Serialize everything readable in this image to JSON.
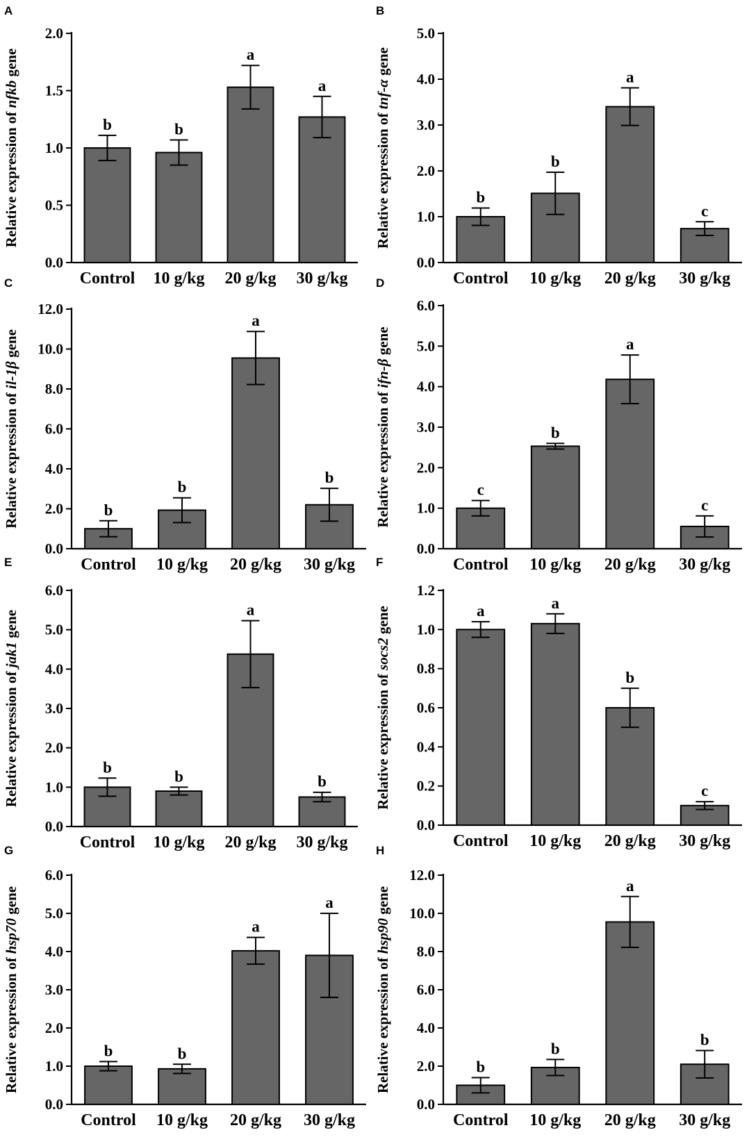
{
  "chart_data": [
    {
      "panel": "A",
      "type": "bar",
      "ylabel_prefix": "Relative expression of ",
      "gene": "nfkb",
      "ylabel_suffix": " gene",
      "categories": [
        "Control",
        "10 g/kg",
        "20 g/kg",
        "30 g/kg"
      ],
      "values": [
        1.0,
        0.96,
        1.53,
        1.27
      ],
      "errors": [
        0.11,
        0.11,
        0.19,
        0.18
      ],
      "letters": [
        "b",
        "b",
        "a",
        "a"
      ],
      "ylim": [
        0,
        2.0
      ],
      "yticks": [
        "0.0",
        "0.5",
        "1.0",
        "1.5",
        "2.0"
      ]
    },
    {
      "panel": "B",
      "type": "bar",
      "ylabel_prefix": "Relative expression of ",
      "gene": "tnf-α",
      "ylabel_suffix": " gene",
      "categories": [
        "Control",
        "10 g/kg",
        "20 g/kg",
        "30 g/kg"
      ],
      "values": [
        1.0,
        1.51,
        3.4,
        0.74
      ],
      "errors": [
        0.19,
        0.46,
        0.41,
        0.15
      ],
      "letters": [
        "b",
        "b",
        "a",
        "c"
      ],
      "ylim": [
        0,
        5.0
      ],
      "yticks": [
        "0.0",
        "1.0",
        "2.0",
        "3.0",
        "4.0",
        "5.0"
      ]
    },
    {
      "panel": "C",
      "type": "bar",
      "ylabel_prefix": "Relative expression of ",
      "gene": "il-1β",
      "ylabel_suffix": " gene",
      "categories": [
        "Control",
        "10 g/kg",
        "20 g/kg",
        "30 g/kg"
      ],
      "values": [
        1.0,
        1.93,
        9.55,
        2.2
      ],
      "errors": [
        0.4,
        0.62,
        1.33,
        0.82
      ],
      "letters": [
        "b",
        "b",
        "a",
        "b"
      ],
      "ylim": [
        0,
        12.0
      ],
      "yticks": [
        "0.0",
        "2.0",
        "4.0",
        "6.0",
        "8.0",
        "10.0",
        "12.0"
      ]
    },
    {
      "panel": "D",
      "type": "bar",
      "ylabel_prefix": "Relative expression of ",
      "gene": "ifn-β",
      "ylabel_suffix": " gene",
      "categories": [
        "Control",
        "10 g/kg",
        "20 g/kg",
        "30 g/kg"
      ],
      "values": [
        1.0,
        2.53,
        4.18,
        0.55
      ],
      "errors": [
        0.19,
        0.07,
        0.6,
        0.26
      ],
      "letters": [
        "c",
        "b",
        "a",
        "c"
      ],
      "ylim": [
        0,
        6.0
      ],
      "yticks": [
        "0.0",
        "1.0",
        "2.0",
        "3.0",
        "4.0",
        "5.0",
        "6.0"
      ]
    },
    {
      "panel": "E",
      "type": "bar",
      "ylabel_prefix": "Relative expression of ",
      "gene": "jak1",
      "ylabel_suffix": " gene",
      "categories": [
        "Control",
        "10 g/kg",
        "20 g/kg",
        "30 g/kg"
      ],
      "values": [
        1.0,
        0.9,
        4.38,
        0.75
      ],
      "errors": [
        0.23,
        0.1,
        0.85,
        0.12
      ],
      "letters": [
        "b",
        "b",
        "a",
        "b"
      ],
      "ylim": [
        0,
        6.0
      ],
      "yticks": [
        "0.0",
        "1.0",
        "2.0",
        "3.0",
        "4.0",
        "5.0",
        "6.0"
      ]
    },
    {
      "panel": "F",
      "type": "bar",
      "ylabel_prefix": "Relative expression of ",
      "gene": "socs2",
      "ylabel_suffix": " gene",
      "categories": [
        "Control",
        "10 g/kg",
        "20 g/kg",
        "30 g/kg"
      ],
      "values": [
        1.0,
        1.03,
        0.6,
        0.1
      ],
      "errors": [
        0.04,
        0.05,
        0.1,
        0.02
      ],
      "letters": [
        "a",
        "a",
        "b",
        "c"
      ],
      "ylim": [
        0,
        1.2
      ],
      "yticks": [
        "0.0",
        "0.2",
        "0.4",
        "0.6",
        "0.8",
        "1.0",
        "1.2"
      ]
    },
    {
      "panel": "G",
      "type": "bar",
      "ylabel_prefix": "Relative expression of ",
      "gene": "hsp70",
      "ylabel_suffix": " gene",
      "categories": [
        "Control",
        "10 g/kg",
        "20 g/kg",
        "30 g/kg"
      ],
      "values": [
        1.0,
        0.93,
        4.02,
        3.9
      ],
      "errors": [
        0.12,
        0.12,
        0.35,
        1.1
      ],
      "letters": [
        "b",
        "b",
        "a",
        "a"
      ],
      "ylim": [
        0,
        6.0
      ],
      "yticks": [
        "0.0",
        "1.0",
        "2.0",
        "3.0",
        "4.0",
        "5.0",
        "6.0"
      ]
    },
    {
      "panel": "H",
      "type": "bar",
      "ylabel_prefix": "Relative expression of ",
      "gene": "hsp90",
      "ylabel_suffix": " gene",
      "categories": [
        "Control",
        "10 g/kg",
        "20 g/kg",
        "30 g/kg"
      ],
      "values": [
        1.0,
        1.93,
        9.55,
        2.1
      ],
      "errors": [
        0.4,
        0.42,
        1.33,
        0.72
      ],
      "letters": [
        "b",
        "b",
        "a",
        "b"
      ],
      "ylim": [
        0,
        12.0
      ],
      "yticks": [
        "0.0",
        "2.0",
        "4.0",
        "6.0",
        "8.0",
        "10.0",
        "12.0"
      ]
    }
  ]
}
